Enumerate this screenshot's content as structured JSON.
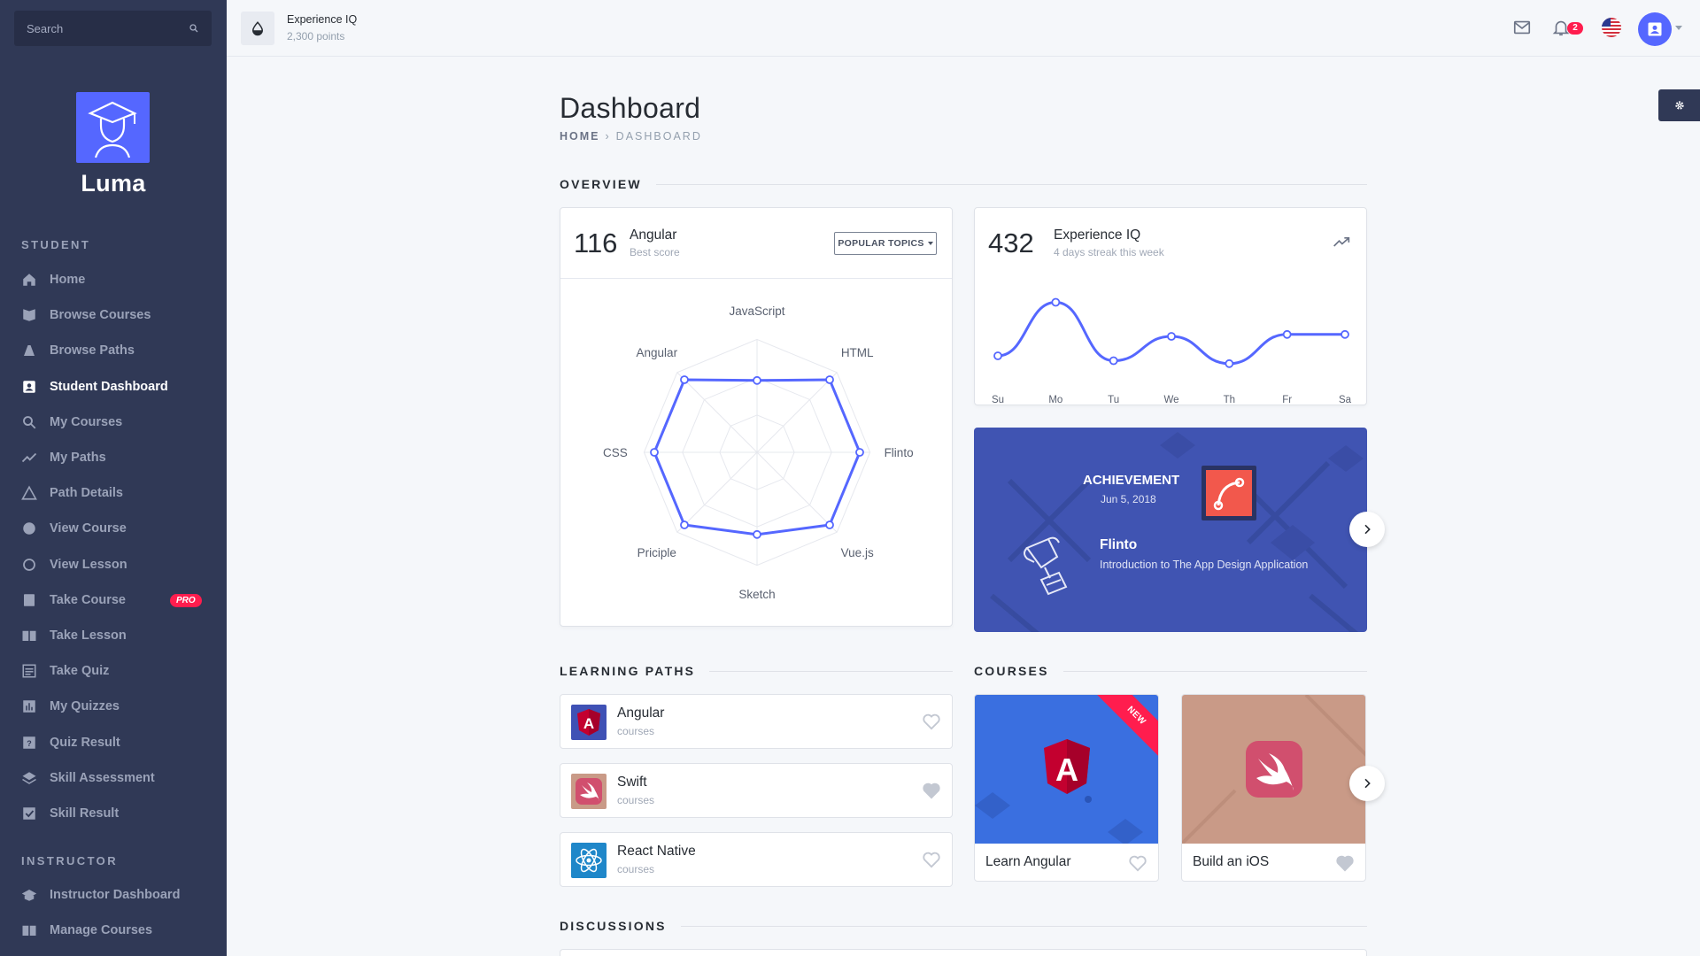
{
  "sidebar": {
    "search_placeholder": "Search",
    "brand": "Luma",
    "student_section": "STUDENT",
    "instructor_section": "INSTRUCTOR",
    "items": [
      {
        "label": "Home",
        "icon": "home-icon"
      },
      {
        "label": "Browse Courses",
        "icon": "book-icon"
      },
      {
        "label": "Browse Paths",
        "icon": "paths-icon"
      },
      {
        "label": "Student Dashboard",
        "icon": "account-box-icon",
        "active": true
      },
      {
        "label": "My Courses",
        "icon": "search-icon"
      },
      {
        "label": "My Paths",
        "icon": "trending-icon"
      },
      {
        "label": "Path Details",
        "icon": "triangle-icon"
      },
      {
        "label": "View Course",
        "icon": "eye-icon"
      },
      {
        "label": "View Lesson",
        "icon": "circle-icon"
      },
      {
        "label": "Take Course",
        "icon": "book-open-icon",
        "badge": "PRO"
      },
      {
        "label": "Take Lesson",
        "icon": "import-contacts-icon"
      },
      {
        "label": "Take Quiz",
        "icon": "list-icon"
      },
      {
        "label": "My Quizzes",
        "icon": "poll-icon"
      },
      {
        "label": "Quiz Result",
        "icon": "help-icon"
      },
      {
        "label": "Skill Assessment",
        "icon": "layers-icon"
      },
      {
        "label": "Skill Result",
        "icon": "check-box-icon"
      }
    ],
    "instructor_items": [
      {
        "label": "Instructor Dashboard",
        "icon": "school-icon"
      },
      {
        "label": "Manage Courses",
        "icon": "import-contacts-icon"
      }
    ]
  },
  "topbar": {
    "xp_title": "Experience IQ",
    "xp_points": "2,300 points",
    "notification_count": "2"
  },
  "page": {
    "title": "Dashboard",
    "breadcrumb_home": "HOME",
    "breadcrumb_sep": "›",
    "breadcrumb_current": "DASHBOARD"
  },
  "overview": {
    "heading": "OVERVIEW",
    "angular_card": {
      "score": "116",
      "title": "Angular",
      "subtitle": "Best score",
      "button": "POPULAR TOPICS"
    },
    "experience_card": {
      "score": "432",
      "title": "Experience IQ",
      "subtitle": "4 days streak this week"
    },
    "achievement": {
      "label": "ACHIEVEMENT",
      "date": "Jun 5, 2018",
      "name": "Flinto",
      "description": "Introduction to The App Design Application",
      "accent": "#4054b2"
    }
  },
  "learning_paths": {
    "heading": "LEARNING PATHS",
    "items": [
      {
        "name": "Angular",
        "sub": "courses",
        "favorited": false
      },
      {
        "name": "Swift",
        "sub": "courses",
        "favorited": true
      },
      {
        "name": "React Native",
        "sub": "courses",
        "favorited": false
      }
    ]
  },
  "courses": {
    "heading": "COURSES",
    "items": [
      {
        "title": "Learn Angular",
        "ribbon": "NEW",
        "color": "#3a6fe0"
      },
      {
        "title": "Build an iOS",
        "color": "#c99a87"
      }
    ]
  },
  "discussions": {
    "heading": "DISCUSSIONS"
  },
  "chart_data": [
    {
      "type": "radar",
      "categories": [
        "JavaScript",
        "HTML",
        "Flinto",
        "Vue.js",
        "Sketch",
        "Priciple",
        "CSS",
        "Angular"
      ],
      "values": [
        70,
        100,
        100,
        100,
        80,
        100,
        100,
        100
      ],
      "max": 100
    },
    {
      "type": "line",
      "categories": [
        "Su",
        "Mo",
        "Tu",
        "We",
        "Th",
        "Fr",
        "Sa"
      ],
      "values": [
        30,
        85,
        25,
        50,
        22,
        52,
        52
      ],
      "ylim": [
        0,
        100
      ],
      "color": "#5567ff"
    }
  ]
}
